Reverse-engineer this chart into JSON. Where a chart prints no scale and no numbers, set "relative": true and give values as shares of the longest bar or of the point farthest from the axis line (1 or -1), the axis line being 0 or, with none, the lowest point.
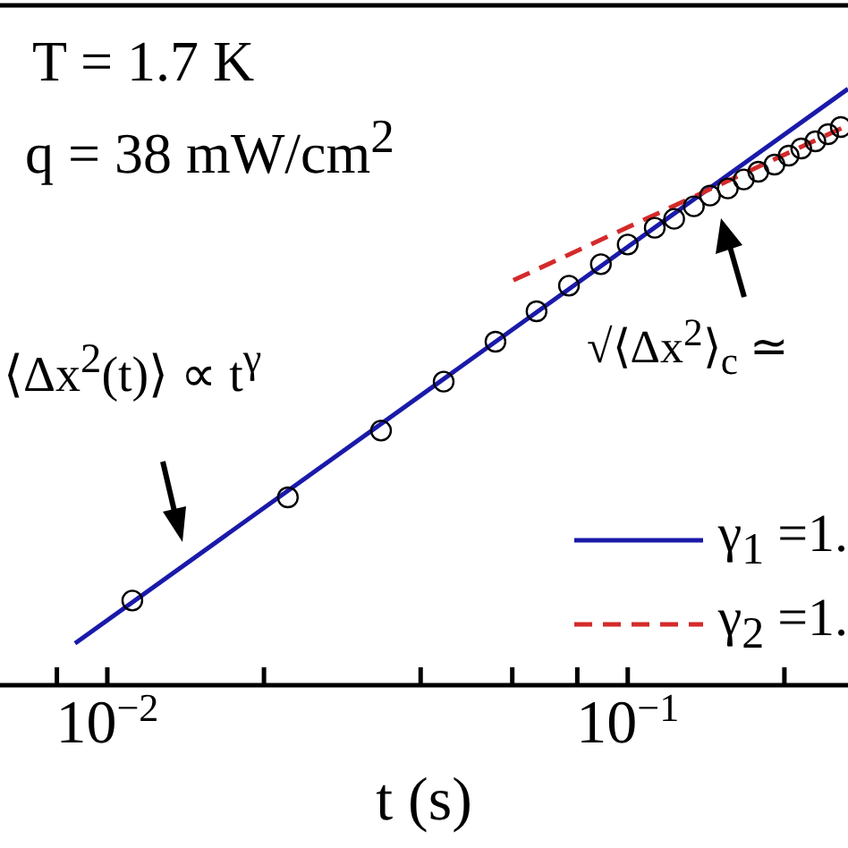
{
  "chart_data": {
    "type": "scatter",
    "relative": true,
    "log": "x",
    "xlabel": "t (s)",
    "xlim": [
      0.00622,
      0.265
    ],
    "xticks": [
      {
        "value": 0.008,
        "label": null
      },
      {
        "value": 0.01,
        "label": "10$^{−2}$"
      },
      {
        "value": 0.02,
        "label": null
      },
      {
        "value": 0.04,
        "label": null
      },
      {
        "value": 0.06,
        "label": null
      },
      {
        "value": 0.08,
        "label": null
      },
      {
        "value": 0.1,
        "label": "10$^{−1}$"
      },
      {
        "value": 0.2,
        "label": null
      }
    ],
    "legend": "bottom right",
    "annotations": [
      "T = 1.7 K",
      "q = 38 mW/cm$^{2}$",
      "⟨Δx$^{2}$(t)⟩ ∝ t$^{γ}$",
      "√⟨Δx$^{2}$⟩$_{c}$ ≃"
    ],
    "series": [
      {
        "type": "scatter",
        "marker": "circle",
        "color": "#000000",
        "x": [
          0.01117,
          0.02223,
          0.03357,
          0.04429,
          0.0557,
          0.0668,
          0.0771,
          0.0888,
          0.1,
          0.1127,
          0.1228,
          0.134,
          0.1439,
          0.1557,
          0.1671,
          0.1782,
          0.1914,
          0.2038,
          0.2155,
          0.2294,
          0.2426,
          0.2567
        ],
        "values": [
          0.142,
          0.315,
          0.427,
          0.509,
          0.576,
          0.627,
          0.67,
          0.706,
          0.739,
          0.767,
          0.782,
          0.803,
          0.821,
          0.833,
          0.848,
          0.861,
          0.873,
          0.888,
          0.9,
          0.912,
          0.924,
          0.936
        ]
      },
      {
        "type": "line",
        "name": "γ$_{1}$ =1.",
        "color": "#1a1aaa",
        "line_style": "solid",
        "x": [
          0.00867,
          0.265
        ],
        "values": [
          0.07,
          1
        ]
      },
      {
        "type": "line",
        "name": "γ$_{2}$ =1.",
        "color": "#d42a2a",
        "line_style": "dashed",
        "x": [
          0.0603,
          0.265
        ],
        "values": [
          0.679,
          0.939
        ]
      }
    ]
  }
}
